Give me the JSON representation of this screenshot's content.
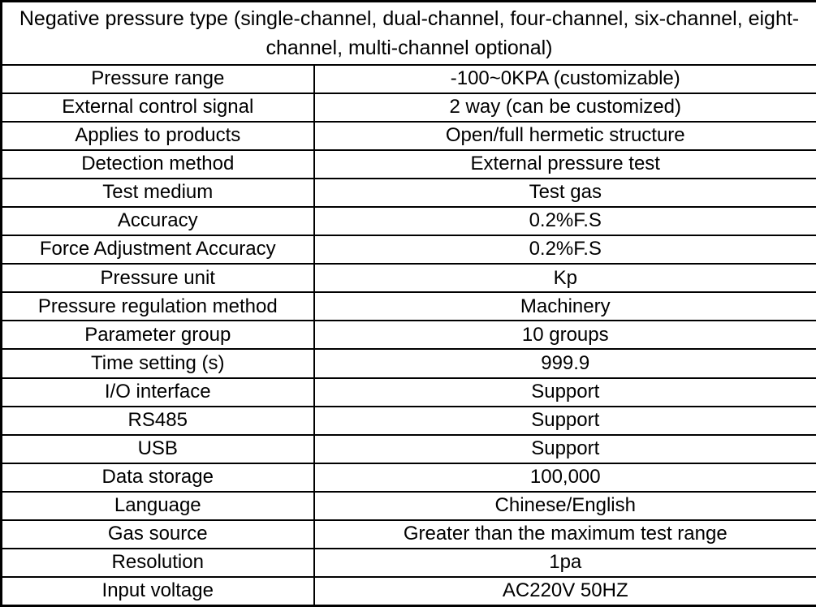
{
  "header": {
    "title": "Negative pressure type (single-channel, dual-channel, four-channel, six-channel, eight-channel, multi-channel optional)"
  },
  "rows": [
    {
      "label": "Pressure range",
      "value": "-100~0KPA (customizable)"
    },
    {
      "label": "External control signal",
      "value": "2 way (can be customized)"
    },
    {
      "label": "Applies to products",
      "value": "Open/full hermetic structure"
    },
    {
      "label": "Detection method",
      "value": "External pressure test"
    },
    {
      "label": "Test medium",
      "value": "Test gas"
    },
    {
      "label": "Accuracy",
      "value": "0.2%F.S"
    },
    {
      "label": "Force Adjustment Accuracy",
      "value": "0.2%F.S"
    },
    {
      "label": "Pressure unit",
      "value": "Kp"
    },
    {
      "label": "Pressure regulation method",
      "value": "Machinery"
    },
    {
      "label": "Parameter group",
      "value": "10 groups"
    },
    {
      "label": "Time setting (s)",
      "value": "999.9"
    },
    {
      "label": "I/O interface",
      "value": "Support"
    },
    {
      "label": "RS485",
      "value": "Support"
    },
    {
      "label": "USB",
      "value": "Support"
    },
    {
      "label": "Data storage",
      "value": "100,000"
    },
    {
      "label": "Language",
      "value": "Chinese/English"
    },
    {
      "label": "Gas source",
      "value": "Greater than the maximum test range"
    },
    {
      "label": "Resolution",
      "value": "1pa"
    },
    {
      "label": "Input voltage",
      "value": "AC220V 50HZ"
    }
  ],
  "colors": {
    "border": "#000000",
    "text": "#000000",
    "background": "#ffffff"
  }
}
